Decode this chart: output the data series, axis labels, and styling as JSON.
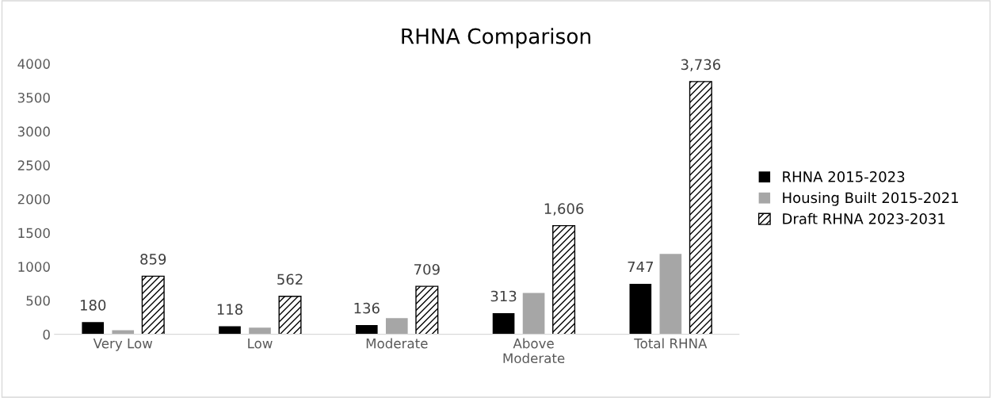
{
  "chart_data": {
    "type": "bar",
    "title": "RHNA Comparison",
    "categories": [
      "Very Low",
      "Low",
      "Moderate",
      "Above\nModerate",
      "Total RHNA"
    ],
    "series": [
      {
        "name": "RHNA 2015-2023",
        "color": "#000000",
        "values": [
          180,
          118,
          136,
          313,
          747
        ],
        "value_labels": [
          "180",
          "118",
          "136",
          "313",
          "747"
        ]
      },
      {
        "name": "Housing Built 2015-2021",
        "color": "#a6a6a6",
        "values": [
          60,
          100,
          240,
          610,
          1190
        ],
        "value_labels": [
          null,
          null,
          null,
          null,
          null
        ]
      },
      {
        "name": "Draft RHNA 2023-2031",
        "color": "#000000",
        "values": [
          859,
          562,
          709,
          1606,
          3736
        ],
        "value_labels": [
          "859",
          "562",
          "709",
          "1,606",
          "3,736"
        ]
      }
    ],
    "ylim": [
      0,
      4000
    ],
    "yticks": [
      0,
      500,
      1000,
      1500,
      2000,
      2500,
      3000,
      3500,
      4000
    ],
    "grid": false,
    "legend": "right"
  }
}
